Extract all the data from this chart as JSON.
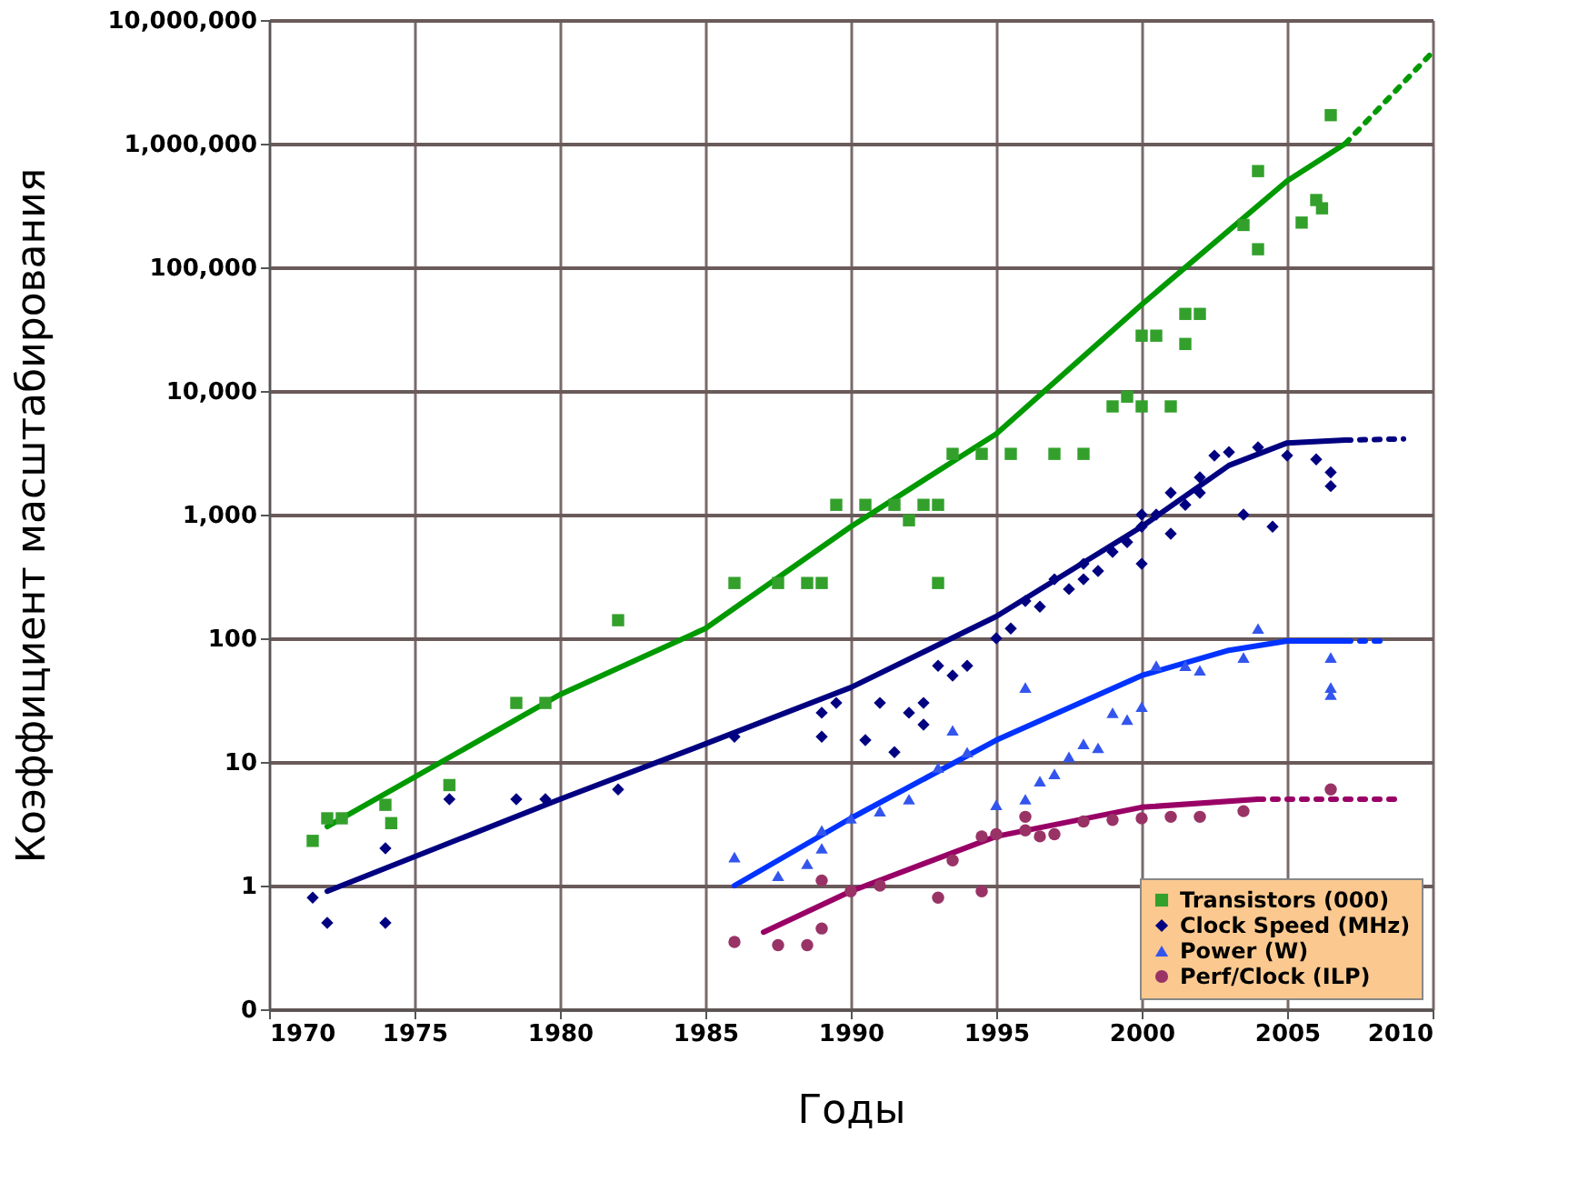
{
  "chart_data": {
    "type": "scatter",
    "xlabel": "Годы",
    "ylabel": "Коэффициент масштабирования",
    "log": "y",
    "grid": true,
    "legend": "bottom right",
    "xlim": [
      1970,
      2010
    ],
    "xticks": [
      1970,
      1975,
      1980,
      1985,
      1990,
      1995,
      2000,
      2005,
      2010
    ],
    "ylim": [
      0.1,
      10000000
    ],
    "yticks": [
      {
        "value": 0.1,
        "label": "0"
      },
      1,
      10,
      100,
      {
        "value": 1000,
        "label": "1,000"
      },
      {
        "value": 10000,
        "label": "10,000"
      },
      {
        "value": 100000,
        "label": "100,000"
      },
      {
        "value": 1000000,
        "label": "1,000,000"
      },
      {
        "value": 10000000,
        "label": "10,000,000"
      }
    ],
    "series": [
      {
        "name": "Transistors (000)",
        "marker": "square",
        "color": "#33a02c",
        "x": [
          1971.5,
          1972,
          1972.5,
          1974,
          1974.2,
          1976.2,
          1978.5,
          1979.5,
          1982,
          1986,
          1987.5,
          1988.5,
          1989,
          1989.5,
          1990.5,
          1991.5,
          1992,
          1992.5,
          1993,
          1993,
          1993.5,
          1994.5,
          1995.5,
          1997,
          1998,
          1999,
          1999.5,
          2000,
          2001,
          2000,
          2000.5,
          2001.5,
          2002,
          2001.5,
          2003.5,
          2004,
          2004,
          2005.5,
          2006,
          2006.2,
          2006.5
        ],
        "values": [
          2.3,
          3.5,
          3.5,
          4.5,
          3.2,
          6.5,
          30,
          30,
          140,
          280,
          280,
          280,
          280,
          1200,
          1200,
          1200,
          900,
          1200,
          1200,
          280,
          3100,
          3100,
          3100,
          3100,
          3100,
          7500,
          9000,
          7500,
          7500,
          28000,
          28000,
          42000,
          42000,
          24000,
          220000,
          600000,
          140000,
          230000,
          350000,
          300000,
          1700000
        ]
      },
      {
        "name": "Clock Speed (MHz)",
        "marker": "diamond",
        "color": "#000080",
        "x": [
          1971.5,
          1972,
          1974,
          1974,
          1976.2,
          1978.5,
          1979.5,
          1982,
          1986,
          1989,
          1989,
          1989.5,
          1990.5,
          1991,
          1991.5,
          1992,
          1992.5,
          1992.5,
          1993,
          1993.5,
          1994,
          1995,
          1995.5,
          1996,
          1996.5,
          1997,
          1997.5,
          1998,
          1998.5,
          1999,
          1999.5,
          2000,
          2000.5,
          2001,
          2001.5,
          2002,
          2002.5,
          2003,
          2003.5,
          2004,
          2004.5,
          2005,
          2006,
          2006.5,
          2006.5,
          2000,
          1998,
          2001,
          2000,
          2002
        ],
        "values": [
          0.8,
          0.5,
          2,
          0.5,
          5,
          5,
          5,
          6,
          16,
          25,
          16,
          30,
          15,
          30,
          12,
          25,
          20,
          30,
          60,
          50,
          60,
          100,
          120,
          200,
          180,
          300,
          250,
          400,
          350,
          500,
          600,
          800,
          1000,
          1500,
          1200,
          2000,
          3000,
          3200,
          1000,
          3500,
          800,
          3000,
          2800,
          2200,
          1700,
          400,
          300,
          700,
          1000,
          1500
        ]
      },
      {
        "name": "Power (W)",
        "marker": "triangle",
        "color": "#3355ee",
        "x": [
          1986,
          1987.5,
          1988.5,
          1989,
          1989,
          1990,
          1991,
          1992,
          1993,
          1993.5,
          1994,
          1995,
          1996,
          1996,
          1996.5,
          1997,
          1997.5,
          1998,
          1998.5,
          1999,
          1999.5,
          2000,
          2000.5,
          2001.5,
          2002,
          2003.5,
          2004,
          2006.5,
          2006.5,
          2006.5
        ],
        "values": [
          1.7,
          1.2,
          1.5,
          2.8,
          2,
          3.5,
          4,
          5,
          9,
          18,
          12,
          4.5,
          5,
          40,
          7,
          8,
          11,
          14,
          13,
          25,
          22,
          28,
          60,
          60,
          55,
          70,
          120,
          70,
          40,
          35
        ]
      },
      {
        "name": "Perf/Clock (ILP)",
        "marker": "circle",
        "color": "#993366",
        "x": [
          1986,
          1987.5,
          1988.5,
          1989,
          1989,
          1990,
          1991,
          1993,
          1993.5,
          1994.5,
          1994.5,
          1995,
          1996,
          1996,
          1996.5,
          1997,
          1998,
          1999,
          2000,
          2001,
          2002,
          2003.5,
          2006.5
        ],
        "values": [
          0.35,
          0.33,
          0.33,
          0.45,
          1.1,
          0.9,
          1,
          0.8,
          1.6,
          0.9,
          2.5,
          2.6,
          2.8,
          3.6,
          2.5,
          2.6,
          3.3,
          3.4,
          3.5,
          3.6,
          3.6,
          4,
          6
        ]
      },
      {
        "type": "line",
        "line_style": "solid",
        "color": "#009900",
        "x": [
          1972,
          1980,
          1985,
          1990,
          1995,
          2000,
          2005,
          2007
        ],
        "values": [
          3,
          35,
          120,
          800,
          4500,
          50000,
          500000,
          1000000
        ]
      },
      {
        "type": "line",
        "line_style": "dotted",
        "color": "#009900",
        "x": [
          2007,
          2010
        ],
        "values": [
          1000000,
          5500000
        ]
      },
      {
        "type": "line",
        "line_style": "solid",
        "color": "#000080",
        "x": [
          1972,
          1980,
          1985,
          1990,
          1995,
          2000,
          2003,
          2005,
          2007
        ],
        "values": [
          0.9,
          5,
          14,
          40,
          150,
          800,
          2500,
          3800,
          4000
        ]
      },
      {
        "type": "line",
        "line_style": "dotted",
        "color": "#000080",
        "x": [
          2007,
          2009
        ],
        "values": [
          4000,
          4100
        ]
      },
      {
        "type": "line",
        "line_style": "solid",
        "color": "#0033ff",
        "x": [
          1986,
          1990,
          1995,
          2000,
          2003,
          2005,
          2007
        ],
        "values": [
          1,
          3.5,
          15,
          50,
          80,
          95,
          95
        ]
      },
      {
        "type": "line",
        "line_style": "dotted",
        "color": "#0033ff",
        "x": [
          2007,
          2008.5
        ],
        "values": [
          95,
          95
        ]
      },
      {
        "type": "line",
        "line_style": "solid",
        "color": "#990066",
        "x": [
          1987,
          1990,
          1995,
          2000,
          2004
        ],
        "values": [
          0.42,
          0.9,
          2.5,
          4.3,
          5
        ]
      },
      {
        "type": "line",
        "line_style": "dotted",
        "color": "#990066",
        "x": [
          2004,
          2009
        ],
        "values": [
          5,
          5
        ]
      }
    ]
  }
}
